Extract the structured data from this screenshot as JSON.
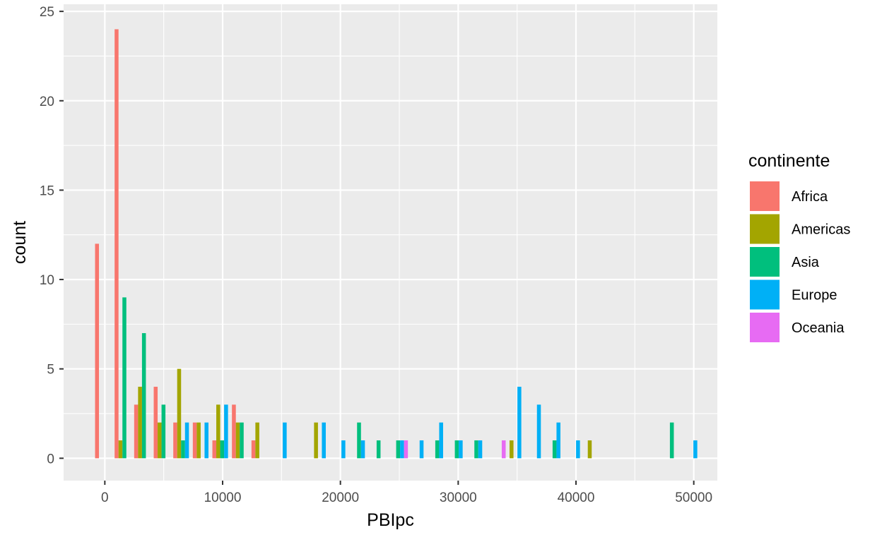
{
  "chart_data": {
    "type": "bar",
    "xlabel": "PBIpc",
    "ylabel": "count",
    "xlim": [
      -3500,
      52000
    ],
    "ylim": [
      -1.25,
      25.4
    ],
    "x_ticks": [
      0,
      10000,
      20000,
      30000,
      40000,
      50000
    ],
    "x_tick_labels": [
      "0",
      "10000",
      "20000",
      "30000",
      "40000",
      "50000"
    ],
    "y_ticks": [
      0,
      5,
      10,
      15,
      20,
      25
    ],
    "y_tick_labels": [
      "0",
      "5",
      "10",
      "15",
      "20",
      "25"
    ],
    "bin_width": 1660,
    "bin_centers": [
      0,
      1660,
      3320,
      4980,
      6640,
      8300,
      9960,
      11620,
      13280,
      14940,
      16600,
      18260,
      19920,
      21580,
      23240,
      24900,
      26560,
      28220,
      29880,
      31540,
      33200,
      34860,
      36520,
      38180,
      39840,
      41500,
      43160,
      44820,
      46480,
      48140,
      49800
    ],
    "grid": true,
    "legend_position": "right",
    "legend_title": "continente",
    "series": [
      {
        "name": "Africa",
        "color": "#F8766D",
        "values": [
          12,
          24,
          3,
          4,
          2,
          2,
          1,
          3,
          1,
          0,
          0,
          0,
          0,
          0,
          0,
          0,
          0,
          0,
          0,
          0,
          0,
          0,
          0,
          0,
          0,
          0,
          0,
          0,
          0,
          0,
          0
        ]
      },
      {
        "name": "Americas",
        "color": "#A3A500",
        "values": [
          0,
          1,
          4,
          2,
          5,
          2,
          3,
          2,
          2,
          0,
          0,
          2,
          0,
          0,
          0,
          0,
          0,
          0,
          0,
          0,
          0,
          1,
          0,
          0,
          0,
          1,
          0,
          0,
          0,
          0,
          0
        ]
      },
      {
        "name": "Asia",
        "color": "#00BF7D",
        "values": [
          0,
          9,
          7,
          3,
          1,
          0,
          1,
          2,
          0,
          0,
          0,
          0,
          0,
          2,
          1,
          1,
          0,
          1,
          1,
          1,
          0,
          0,
          0,
          1,
          0,
          0,
          0,
          0,
          0,
          2,
          0
        ]
      },
      {
        "name": "Europe",
        "color": "#00B0F6",
        "values": [
          0,
          0,
          0,
          0,
          2,
          2,
          3,
          0,
          0,
          2,
          0,
          2,
          1,
          1,
          0,
          1,
          1,
          2,
          1,
          1,
          0,
          4,
          3,
          2,
          1,
          0,
          0,
          0,
          0,
          0,
          1
        ]
      },
      {
        "name": "Oceania",
        "color": "#E76BF3",
        "values": [
          0,
          0,
          0,
          0,
          0,
          0,
          0,
          0,
          0,
          0,
          0,
          0,
          0,
          0,
          0,
          1,
          0,
          0,
          0,
          0,
          1,
          0,
          0,
          0,
          0,
          0,
          0,
          0,
          0,
          0,
          0
        ]
      }
    ]
  }
}
